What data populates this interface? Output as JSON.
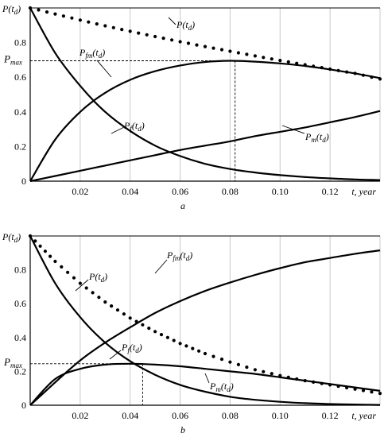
{
  "chart_data": [
    {
      "type": "line",
      "panel_label": "a",
      "y_axis_label": "P(t_d)",
      "x_axis_label": "t, year",
      "pmax_label": "P_max",
      "xlim": [
        0,
        0.14
      ],
      "ylim": [
        0,
        1.0
      ],
      "xticks": [
        "0.02",
        "0.04",
        "0.06",
        "0.08",
        "0.10",
        "0.12"
      ],
      "xtick_values": [
        0.02,
        0.04,
        0.06,
        0.08,
        0.1,
        0.12
      ],
      "yticks": [
        "0",
        "0.2",
        "0.4",
        "0.6",
        "0.8"
      ],
      "ytick_values": [
        0,
        0.2,
        0.4,
        0.6,
        0.8
      ],
      "grid": "vertical",
      "pmax": {
        "x": 0.082,
        "y": 0.695
      },
      "series": [
        {
          "name": "P(t_d)",
          "style": "dotted",
          "x": [
            0,
            0.01,
            0.02,
            0.03,
            0.04,
            0.05,
            0.06,
            0.07,
            0.08,
            0.09,
            0.1,
            0.11,
            0.12,
            0.13,
            0.14
          ],
          "y": [
            1.0,
            0.965,
            0.93,
            0.897,
            0.865,
            0.835,
            0.805,
            0.777,
            0.75,
            0.723,
            0.697,
            0.672,
            0.647,
            0.622,
            0.59
          ]
        },
        {
          "name": "P_fm(t_d)",
          "style": "solid",
          "x": [
            0,
            0.01,
            0.02,
            0.03,
            0.04,
            0.05,
            0.06,
            0.07,
            0.08,
            0.09,
            0.1,
            0.11,
            0.12,
            0.13,
            0.14
          ],
          "y": [
            0,
            0.24,
            0.4,
            0.51,
            0.585,
            0.635,
            0.668,
            0.688,
            0.695,
            0.69,
            0.68,
            0.665,
            0.645,
            0.622,
            0.595
          ]
        },
        {
          "name": "P_f(t_d)",
          "style": "solid",
          "x": [
            0,
            0.01,
            0.02,
            0.03,
            0.04,
            0.05,
            0.06,
            0.07,
            0.08,
            0.09,
            0.1,
            0.11,
            0.12,
            0.13,
            0.14
          ],
          "y": [
            1.0,
            0.74,
            0.55,
            0.4,
            0.29,
            0.205,
            0.145,
            0.1,
            0.07,
            0.05,
            0.035,
            0.024,
            0.016,
            0.01,
            0.006
          ]
        },
        {
          "name": "P_m(t_d)",
          "style": "solid",
          "x": [
            0,
            0.01,
            0.02,
            0.03,
            0.04,
            0.05,
            0.06,
            0.07,
            0.08,
            0.09,
            0.1,
            0.11,
            0.12,
            0.13,
            0.14
          ],
          "y": [
            0,
            0.03,
            0.06,
            0.09,
            0.12,
            0.15,
            0.18,
            0.205,
            0.23,
            0.26,
            0.285,
            0.31,
            0.34,
            0.37,
            0.405
          ]
        }
      ]
    },
    {
      "type": "line",
      "panel_label": "b",
      "y_axis_label": "P(t_d)",
      "x_axis_label": "t, year",
      "pmax_label": "P_max",
      "xlim": [
        0,
        0.14
      ],
      "ylim": [
        0,
        1.0
      ],
      "xticks": [
        "0.02",
        "0.04",
        "0.06",
        "0.08",
        "0.10",
        "0.12"
      ],
      "xtick_values": [
        0.02,
        0.04,
        0.06,
        0.08,
        0.1,
        0.12
      ],
      "yticks": [
        "0",
        "0.2",
        "0.4",
        "0.6",
        "0.8"
      ],
      "ytick_values": [
        0,
        0.2,
        0.4,
        0.6,
        0.8
      ],
      "grid": "vertical",
      "pmax": {
        "x": 0.045,
        "y": 0.245
      },
      "series": [
        {
          "name": "P(t_d)",
          "style": "dotted",
          "x": [
            0,
            0.01,
            0.02,
            0.03,
            0.04,
            0.05,
            0.06,
            0.07,
            0.08,
            0.09,
            0.1,
            0.11,
            0.12,
            0.13,
            0.14
          ],
          "y": [
            1.0,
            0.85,
            0.72,
            0.61,
            0.515,
            0.435,
            0.365,
            0.305,
            0.255,
            0.21,
            0.175,
            0.145,
            0.12,
            0.095,
            0.07
          ]
        },
        {
          "name": "P_fm(t_d)",
          "style": "solid",
          "x": [
            0,
            0.01,
            0.02,
            0.03,
            0.04,
            0.05,
            0.06,
            0.07,
            0.08,
            0.09,
            0.1,
            0.11,
            0.12,
            0.13,
            0.14
          ],
          "y": [
            0,
            0.155,
            0.215,
            0.24,
            0.245,
            0.24,
            0.23,
            0.215,
            0.2,
            0.185,
            0.165,
            0.145,
            0.125,
            0.105,
            0.085
          ]
        },
        {
          "name": "P_f(t_d)",
          "style": "solid",
          "x": [
            0,
            0.01,
            0.02,
            0.03,
            0.04,
            0.05,
            0.06,
            0.07,
            0.08,
            0.09,
            0.1,
            0.11,
            0.12,
            0.13,
            0.14
          ],
          "y": [
            1.0,
            0.72,
            0.52,
            0.37,
            0.26,
            0.18,
            0.12,
            0.08,
            0.05,
            0.032,
            0.02,
            0.012,
            0.007,
            0.004,
            0.002
          ]
        },
        {
          "name": "P_m(t_d)",
          "style": "solid",
          "x": [
            0,
            0.01,
            0.02,
            0.03,
            0.04,
            0.05,
            0.06,
            0.07,
            0.08,
            0.09,
            0.1,
            0.11,
            0.12,
            0.13,
            0.14
          ],
          "y": [
            0,
            0.135,
            0.265,
            0.37,
            0.46,
            0.545,
            0.615,
            0.675,
            0.725,
            0.77,
            0.81,
            0.845,
            0.87,
            0.895,
            0.915
          ]
        }
      ]
    }
  ]
}
